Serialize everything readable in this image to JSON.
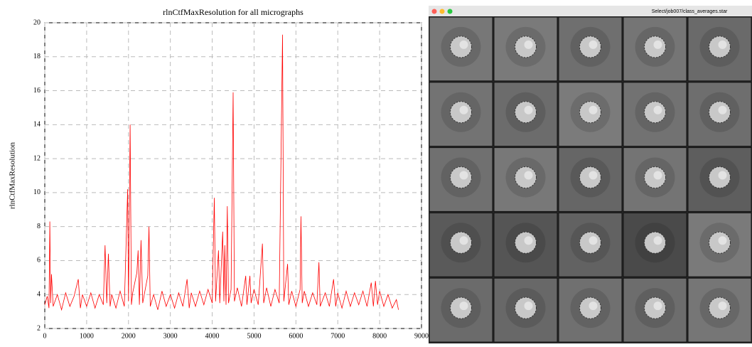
{
  "chart_data": {
    "type": "line",
    "title": "rlnCtfMaxResolution for all micrographs",
    "y_label": "rlnCtfMaxResolution",
    "color": "#ff0000",
    "grid": true,
    "xlim": [
      0,
      9000
    ],
    "xticks": [
      0,
      1000,
      2000,
      3000,
      4000,
      5000,
      6000,
      7000,
      8000,
      9000
    ],
    "ylim": [
      2,
      20
    ],
    "yticks": [
      2,
      4,
      6,
      8,
      10,
      12,
      14,
      16,
      18,
      20
    ],
    "x": [
      0,
      60,
      100,
      120,
      140,
      160,
      200,
      300,
      400,
      500,
      600,
      700,
      800,
      850,
      900,
      1000,
      1100,
      1200,
      1300,
      1400,
      1440,
      1480,
      1520,
      1560,
      1600,
      1700,
      1800,
      1900,
      1980,
      2000,
      2040,
      2070,
      2100,
      2200,
      2230,
      2260,
      2300,
      2340,
      2400,
      2460,
      2490,
      2520,
      2600,
      2700,
      2800,
      2900,
      3000,
      3100,
      3200,
      3300,
      3400,
      3450,
      3500,
      3600,
      3700,
      3800,
      3900,
      4000,
      4050,
      4080,
      4150,
      4180,
      4250,
      4280,
      4300,
      4330,
      4360,
      4390,
      4450,
      4500,
      4530,
      4600,
      4700,
      4800,
      4830,
      4900,
      4930,
      5000,
      5100,
      5200,
      5230,
      5300,
      5400,
      5500,
      5600,
      5680,
      5710,
      5800,
      5830,
      5900,
      6000,
      6100,
      6120,
      6150,
      6200,
      6300,
      6400,
      6500,
      6550,
      6580,
      6700,
      6800,
      6900,
      6950,
      7000,
      7100,
      7200,
      7300,
      7400,
      7500,
      7600,
      7700,
      7800,
      7850,
      7900,
      7950,
      8000,
      8100,
      8200,
      8300,
      8400,
      8450
    ],
    "values": [
      3.4,
      3.9,
      3.2,
      8.3,
      3.5,
      5.2,
      3.3,
      4.0,
      3.1,
      4.1,
      3.3,
      3.9,
      4.9,
      3.2,
      4.0,
      3.3,
      4.1,
      3.2,
      4.0,
      3.4,
      6.9,
      3.5,
      6.4,
      3.3,
      4.0,
      3.2,
      4.2,
      3.3,
      10.2,
      3.6,
      14.0,
      3.4,
      4.1,
      5.3,
      6.6,
      3.4,
      7.2,
      3.5,
      4.3,
      5.1,
      8.0,
      3.3,
      4.0,
      3.1,
      4.2,
      3.3,
      4.0,
      3.2,
      4.1,
      3.3,
      4.9,
      3.2,
      4.1,
      3.3,
      4.2,
      3.4,
      4.3,
      3.5,
      9.7,
      3.6,
      6.6,
      3.5,
      7.7,
      3.6,
      6.9,
      3.4,
      9.2,
      3.5,
      4.3,
      15.9,
      3.6,
      4.4,
      3.3,
      5.1,
      3.4,
      5.1,
      3.5,
      4.3,
      3.4,
      7.0,
      3.5,
      4.4,
      3.3,
      4.3,
      3.5,
      19.3,
      3.6,
      5.8,
      3.4,
      4.2,
      3.3,
      4.3,
      8.6,
      3.5,
      4.2,
      3.3,
      4.1,
      3.4,
      5.9,
      3.3,
      4.1,
      3.3,
      4.9,
      3.3,
      4.1,
      3.2,
      4.2,
      3.3,
      4.1,
      3.4,
      4.2,
      3.3,
      4.7,
      3.3,
      4.8,
      3.4,
      4.2,
      3.3,
      4.0,
      3.2,
      3.7,
      3.1
    ]
  },
  "window": {
    "title": "Select/job007/class_averages.star"
  }
}
